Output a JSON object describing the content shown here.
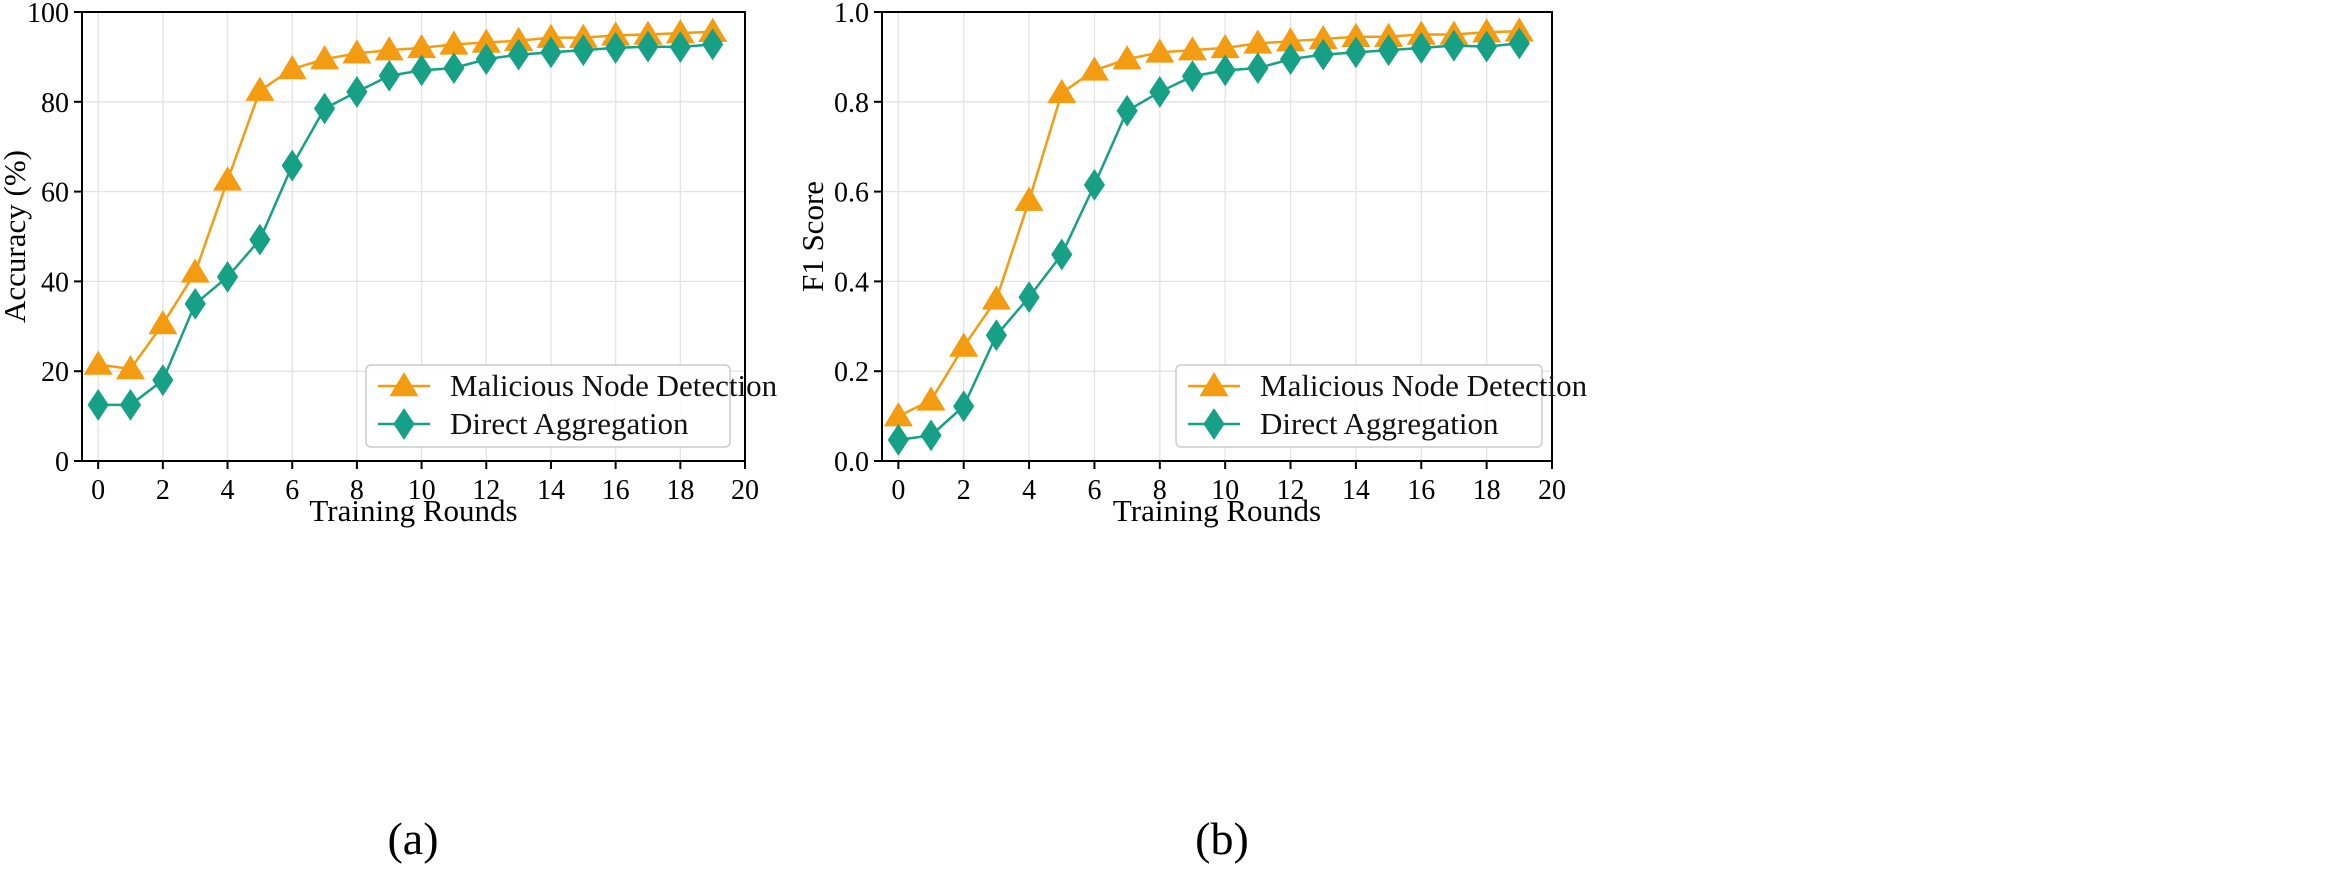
{
  "chart_data": [
    {
      "type": "line",
      "panel_label": "(a)",
      "xlabel": "Training Rounds",
      "ylabel": "Accuracy (%)",
      "xlim": [
        -0.5,
        20
      ],
      "ylim": [
        0,
        100
      ],
      "xticks": [
        0,
        2,
        4,
        6,
        8,
        10,
        12,
        14,
        16,
        18,
        20
      ],
      "xtick_labels": [
        "0",
        "2",
        "4",
        "6",
        "8",
        "10",
        "12",
        "14",
        "16",
        "18",
        "20"
      ],
      "yticks": [
        0,
        20,
        40,
        60,
        80,
        100
      ],
      "ytick_labels": [
        "0",
        "20",
        "40",
        "60",
        "80",
        "100"
      ],
      "grid": true,
      "legend_position": "lower-right",
      "x": [
        0,
        1,
        2,
        3,
        4,
        5,
        6,
        7,
        8,
        9,
        10,
        11,
        12,
        13,
        14,
        15,
        16,
        17,
        18,
        19
      ],
      "series": [
        {
          "name": "Malicious Node Detection",
          "color": "#f39c12",
          "marker": "triangle",
          "values": [
            21.5,
            20.5,
            30.5,
            42.0,
            62.5,
            82.5,
            87.3,
            89.5,
            90.8,
            91.5,
            92.0,
            92.8,
            93.2,
            93.6,
            94.3,
            94.3,
            94.8,
            95.0,
            95.3,
            95.6
          ]
        },
        {
          "name": "Direct Aggregation",
          "color": "#16a085",
          "marker": "diamond",
          "values": [
            12.5,
            12.5,
            18.0,
            35.0,
            41.0,
            49.3,
            65.8,
            78.5,
            82.2,
            85.8,
            87.0,
            87.5,
            89.5,
            90.5,
            91.0,
            91.5,
            92.0,
            92.3,
            92.2,
            92.8
          ]
        }
      ]
    },
    {
      "type": "line",
      "panel_label": "(b)",
      "xlabel": "Training Rounds",
      "ylabel": "F1 Score",
      "xlim": [
        -0.5,
        20
      ],
      "ylim": [
        0,
        1
      ],
      "xticks": [
        0,
        2,
        4,
        6,
        8,
        10,
        12,
        14,
        16,
        18,
        20
      ],
      "xtick_labels": [
        "0",
        "2",
        "4",
        "6",
        "8",
        "10",
        "12",
        "14",
        "16",
        "18",
        "20"
      ],
      "yticks": [
        0,
        0.2,
        0.4,
        0.6,
        0.8,
        1.0
      ],
      "ytick_labels": [
        "0.0",
        "0.2",
        "0.4",
        "0.6",
        "0.8",
        "1.0"
      ],
      "grid": true,
      "legend_position": "lower-right",
      "x": [
        0,
        1,
        2,
        3,
        4,
        5,
        6,
        7,
        8,
        9,
        10,
        11,
        12,
        13,
        14,
        15,
        16,
        17,
        18,
        19
      ],
      "series": [
        {
          "name": "Malicious Node Detection",
          "color": "#f39c12",
          "marker": "triangle",
          "values": [
            0.1,
            0.135,
            0.255,
            0.36,
            0.58,
            0.82,
            0.87,
            0.895,
            0.91,
            0.915,
            0.92,
            0.93,
            0.935,
            0.94,
            0.945,
            0.945,
            0.95,
            0.95,
            0.955,
            0.957
          ]
        },
        {
          "name": "Direct Aggregation",
          "color": "#16a085",
          "marker": "diamond",
          "values": [
            0.047,
            0.057,
            0.122,
            0.28,
            0.365,
            0.46,
            0.615,
            0.78,
            0.822,
            0.857,
            0.87,
            0.875,
            0.895,
            0.905,
            0.91,
            0.915,
            0.92,
            0.925,
            0.923,
            0.93
          ]
        }
      ]
    }
  ]
}
